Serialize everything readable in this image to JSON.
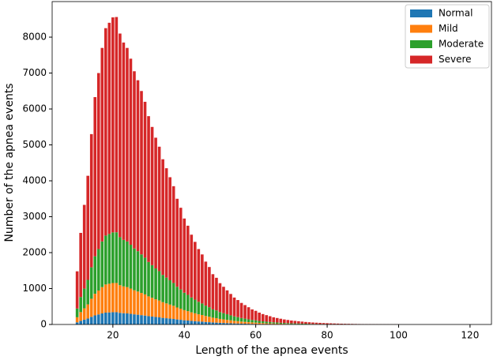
{
  "chart_data": {
    "type": "bar",
    "stacked": true,
    "x_label": "Length of the apnea events",
    "y_label": "Number of the apnea events",
    "x": [
      10,
      11,
      12,
      13,
      14,
      15,
      16,
      17,
      18,
      19,
      20,
      21,
      22,
      23,
      24,
      25,
      26,
      27,
      28,
      29,
      30,
      31,
      32,
      33,
      34,
      35,
      36,
      37,
      38,
      39,
      40,
      41,
      42,
      43,
      44,
      45,
      46,
      47,
      48,
      49,
      50,
      51,
      52,
      53,
      54,
      55,
      56,
      57,
      58,
      59,
      60,
      61,
      62,
      63,
      64,
      65,
      66,
      67,
      68,
      69,
      70,
      71,
      72,
      73,
      74,
      75,
      76,
      77,
      78,
      79,
      80,
      81,
      82,
      83,
      84,
      85,
      86,
      87,
      88,
      89,
      90,
      91,
      92,
      93,
      94,
      95,
      96,
      97,
      98,
      99,
      100
    ],
    "series": [
      {
        "name": "Normal",
        "color": "#1f77b4",
        "values": [
          59,
          102,
          133,
          166,
          212,
          253,
          280,
          308,
          330,
          336,
          342,
          342,
          324,
          314,
          308,
          296,
          282,
          272,
          260,
          248,
          232,
          220,
          208,
          198,
          184,
          174,
          164,
          154,
          140,
          130,
          118,
          110,
          100,
          92,
          84,
          78,
          70,
          64,
          56,
          52,
          46,
          42,
          38,
          34,
          30,
          27,
          24,
          22,
          19,
          17,
          15,
          13,
          12,
          10,
          9,
          8,
          7,
          6,
          6,
          5,
          4,
          4,
          4,
          3,
          3,
          2,
          2,
          2,
          2,
          2,
          1,
          1,
          1,
          1,
          1,
          1,
          1,
          1,
          1,
          0,
          0,
          0,
          0,
          0,
          0,
          0,
          0,
          0,
          0,
          0,
          0
        ]
      },
      {
        "name": "Mild",
        "color": "#ff7f0e",
        "values": [
          141,
          242,
          316,
          393,
          504,
          601,
          665,
          732,
          784,
          798,
          812,
          813,
          770,
          746,
          732,
          703,
          670,
          646,
          618,
          589,
          551,
          523,
          494,
          470,
          437,
          413,
          390,
          366,
          333,
          309,
          280,
          261,
          238,
          219,
          200,
          185,
          166,
          152,
          133,
          124,
          109,
          100,
          90,
          81,
          71,
          65,
          57,
          51,
          46,
          40,
          36,
          31,
          28,
          25,
          22,
          19,
          17,
          15,
          13,
          12,
          10,
          10,
          9,
          8,
          7,
          6,
          5,
          5,
          4,
          4,
          3,
          3,
          3,
          2,
          2,
          2,
          2,
          2,
          1,
          1,
          1,
          1,
          1,
          1,
          1,
          1,
          0,
          0,
          0,
          0,
          0
        ]
      },
      {
        "name": "Moderate",
        "color": "#2ca02c",
        "values": [
          244,
          421,
          549,
          683,
          875,
          1044,
          1155,
          1271,
          1361,
          1386,
          1411,
          1412,
          1337,
          1295,
          1271,
          1221,
          1163,
          1122,
          1073,
          1023,
          957,
          908,
          858,
          817,
          759,
          718,
          677,
          635,
          578,
          536,
          487,
          454,
          413,
          380,
          347,
          322,
          289,
          264,
          231,
          215,
          190,
          173,
          157,
          140,
          124,
          112,
          99,
          89,
          79,
          69,
          63,
          54,
          48,
          43,
          38,
          33,
          30,
          26,
          23,
          21,
          18,
          17,
          15,
          13,
          12,
          10,
          9,
          8,
          7,
          7,
          6,
          5,
          5,
          4,
          4,
          3,
          3,
          3,
          2,
          2,
          2,
          2,
          1,
          1,
          1,
          1,
          1,
          1,
          1,
          1,
          0
        ]
      },
      {
        "name": "Severe",
        "color": "#d62728",
        "values": [
          1036,
          1785,
          2332,
          2898,
          3709,
          4432,
          4900,
          5389,
          5775,
          5880,
          5985,
          5993,
          5669,
          5495,
          5389,
          5180,
          4935,
          4760,
          4549,
          4340,
          4060,
          3849,
          3640,
          3465,
          3220,
          3045,
          2869,
          2695,
          2449,
          2275,
          2065,
          1925,
          1749,
          1609,
          1469,
          1365,
          1225,
          1120,
          980,
          909,
          805,
          735,
          665,
          595,
          525,
          476,
          420,
          378,
          336,
          294,
          266,
          232,
          202,
          182,
          161,
          140,
          126,
          113,
          98,
          87,
          78,
          69,
          62,
          56,
          48,
          44,
          39,
          35,
          32,
          27,
          26,
          23,
          19,
          18,
          15,
          14,
          12,
          10,
          10,
          9,
          8,
          7,
          7,
          6,
          5,
          4,
          4,
          4,
          3,
          3,
          3
        ]
      }
    ],
    "xlim": [
      3,
      126
    ],
    "xticks": [
      20,
      40,
      60,
      80,
      100,
      120
    ],
    "ylim": [
      0,
      8990
    ],
    "yticks": [
      0,
      1000,
      2000,
      3000,
      4000,
      5000,
      6000,
      7000,
      8000
    ],
    "legend": "upper right"
  }
}
